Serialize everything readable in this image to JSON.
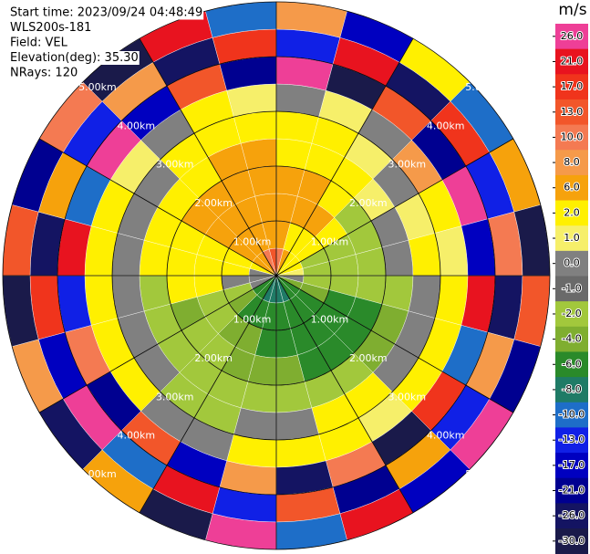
{
  "chart_data": {
    "type": "ppi",
    "header": [
      "Start time: 2023/09/24 04:48:49",
      "WLS200s-181",
      "Field: VEL",
      "Elevation(deg): 35.30",
      "NRays: 120"
    ],
    "colorbar_title": "m/s",
    "colorbar": {
      "ticks": [
        {
          "value": 26,
          "label": "26.0"
        },
        {
          "value": 21,
          "label": "21.0"
        },
        {
          "value": 17,
          "label": "17.0"
        },
        {
          "value": 13,
          "label": "13.0"
        },
        {
          "value": 10,
          "label": "10.0"
        },
        {
          "value": 8,
          "label": "8.0"
        },
        {
          "value": 6,
          "label": "6.0"
        },
        {
          "value": 2,
          "label": "2.0"
        },
        {
          "value": 1,
          "label": "1.0"
        },
        {
          "value": 0,
          "label": "0.0"
        },
        {
          "value": -1,
          "label": "-1.0"
        },
        {
          "value": -2,
          "label": "-2.0"
        },
        {
          "value": -4,
          "label": "-4.0"
        },
        {
          "value": -6,
          "label": "-6.0"
        },
        {
          "value": -8,
          "label": "-8.0"
        },
        {
          "value": -10,
          "label": "-10.0"
        },
        {
          "value": -13,
          "label": "-13.0"
        },
        {
          "value": -17,
          "label": "-17.0"
        },
        {
          "value": -21,
          "label": "-21.0"
        },
        {
          "value": -26,
          "label": "-26.0"
        },
        {
          "value": -30,
          "label": "-30.0"
        }
      ],
      "colors": [
        "#ee3f97",
        "#e8131f",
        "#f0341c",
        "#f2562a",
        "#f47a52",
        "#f59a4a",
        "#f6a20c",
        "#fff000",
        "#f6ef6a",
        "#808080",
        "#6a6a6a",
        "#a2c83c",
        "#7fae30",
        "#2a8a2a",
        "#1f7b66",
        "#1e6ec8",
        "#1020e6",
        "#0000c0",
        "#000090",
        "#141462",
        "#1a1a4a"
      ]
    },
    "rlim": [
      0,
      5
    ],
    "range_rings": [
      {
        "value": 1,
        "label": "1.00km"
      },
      {
        "value": 2,
        "label": "2.00km"
      },
      {
        "value": 3,
        "label": "3.00km"
      },
      {
        "value": 4,
        "label": "4.00km"
      },
      {
        "value": 5,
        "label": "5.00km"
      }
    ],
    "field": {
      "values": [
        [
          10,
          6,
          6,
          6,
          2,
          2,
          0,
          26,
          -13,
          8
        ],
        [
          6,
          2,
          6,
          6,
          2,
          2,
          1,
          -30,
          21,
          -17
        ],
        [
          2,
          2,
          6,
          2,
          2,
          1,
          0,
          13,
          -26,
          2
        ],
        [
          2,
          2,
          2,
          -2,
          1,
          0,
          8,
          -21,
          17,
          -10
        ],
        [
          2,
          -2,
          -2,
          -2,
          0,
          1,
          2,
          26,
          -13,
          6
        ],
        [
          1,
          -2,
          -2,
          -2,
          0,
          2,
          1,
          -17,
          10,
          -30
        ],
        [
          0,
          -2,
          -2,
          -2,
          -2,
          0,
          2,
          21,
          -26,
          13
        ],
        [
          -4,
          -4,
          -6,
          -6,
          -4,
          0,
          2,
          -10,
          8,
          -21
        ],
        [
          -6,
          -6,
          -6,
          -6,
          -4,
          0,
          2,
          17,
          -13,
          26
        ],
        [
          -6,
          -6,
          -6,
          -6,
          -2,
          2,
          1,
          -30,
          6,
          -17
        ],
        [
          -8,
          -6,
          -6,
          -6,
          -2,
          2,
          2,
          10,
          -21,
          21
        ],
        [
          -8,
          -6,
          -6,
          -4,
          -2,
          0,
          2,
          -26,
          13,
          -10
        ],
        [
          -8,
          -6,
          -6,
          -4,
          -2,
          0,
          2,
          8,
          -13,
          26
        ],
        [
          -8,
          -6,
          -4,
          -4,
          -2,
          -2,
          0,
          -17,
          21,
          -30
        ],
        [
          -6,
          -6,
          -4,
          -2,
          -2,
          -2,
          0,
          13,
          -10,
          6
        ],
        [
          -6,
          -4,
          -2,
          -2,
          -2,
          0,
          2,
          -21,
          26,
          -26
        ],
        [
          0,
          -2,
          -2,
          -4,
          -2,
          0,
          2,
          10,
          -17,
          8
        ],
        [
          0,
          0,
          2,
          2,
          -2,
          0,
          2,
          -13,
          17,
          -30
        ],
        [
          0,
          2,
          2,
          2,
          2,
          0,
          2,
          21,
          -26,
          13
        ],
        [
          2,
          2,
          2,
          2,
          2,
          0,
          2,
          -10,
          6,
          -21
        ],
        [
          6,
          6,
          6,
          6,
          2,
          0,
          1,
          26,
          -13,
          10
        ],
        [
          6,
          6,
          6,
          6,
          2,
          2,
          0,
          -17,
          8,
          -30
        ],
        [
          10,
          6,
          6,
          6,
          6,
          2,
          2,
          13,
          -26,
          21
        ],
        [
          13,
          6,
          6,
          6,
          6,
          2,
          1,
          -21,
          17,
          -10
        ]
      ]
    }
  }
}
